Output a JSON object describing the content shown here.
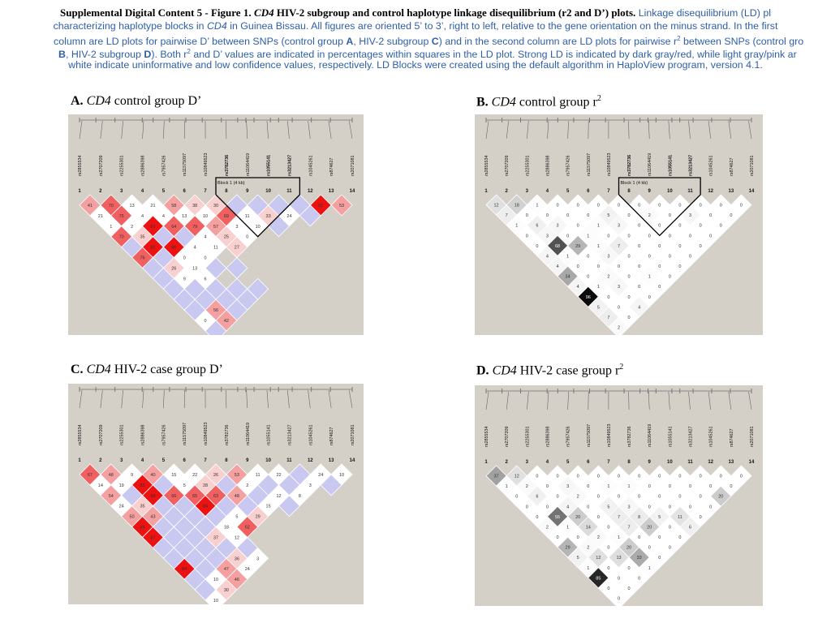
{
  "caption": {
    "heading_prefix": "Supplemental Digital Content 5 - Figure 1.",
    "heading_gene": "CD4",
    "heading_rest": " HIV-2 subgroup and control haplotype linkage disequilibrium (r2 and D’) plots.",
    "line1_tail": "Linkage disequilibrium (LD) pl",
    "line2_a": "characterizing haplotype blocks in ",
    "line2_gene": "CD4",
    "line2_b": " in Guinea Bissau. All figures are oriented 5’ to 3’, right to left, relative to the gene orientation on the minus strand. In the first",
    "line3_a": "column are LD plots for pairwise D’ between SNPs (control group ",
    "line3_A": "A",
    "line3_b": ", HIV-2 subgroup ",
    "line3_C": "C",
    "line3_c": ") and in the second column are LD plots for pairwise r",
    "line3_sup": "2",
    "line3_d": " between SNPs (control gro",
    "line4_B": "B",
    "line4_a": ", HIV-2 subgroup ",
    "line4_D": "D",
    "line4_b": "). Both r",
    "line4_sup": "2",
    "line4_c": " and D’ values are indicated in percentages within squares in the LD plot. Strong LD is indicated by dark gray/red, while light gray/pink ar",
    "line5": "white indicate uninformative and low confidence values, respectively. LD Blocks were created using the default algorithm in HaploView program, version 4.1."
  },
  "snps": [
    "rs2855534",
    "rs2707209",
    "rs2255301",
    "rs2886398",
    "rs7957426",
    "rs11575097",
    "rs10849523",
    "rs3782736",
    "rs11064419",
    "rs1055141",
    "rs3213427",
    "rs1045261",
    "rs874627",
    "rs2071081"
  ],
  "snp_numbers": [
    "1",
    "2",
    "3",
    "4",
    "5",
    "6",
    "7",
    "8",
    "9",
    "10",
    "11",
    "12",
    "13",
    "14"
  ],
  "panels": [
    {
      "id": "A",
      "letter": "A.",
      "gene": "CD4",
      "label": " control group D’",
      "sup": "",
      "scheme": "dprime",
      "block_label": "Block 1 (4 kb)",
      "highlight_snps": [
        8,
        10,
        11
      ],
      "cells": [
        [
          "41",
          "70",
          "13",
          "21",
          "58",
          "38",
          "30",
          "",
          "",
          "",
          "",
          "82",
          "53",
          ""
        ],
        [
          "21",
          "75",
          "4",
          "4",
          "13",
          "10",
          "69",
          "11",
          "33",
          "24",
          ""
        ],
        [
          "1",
          "2",
          "91",
          "64",
          "79",
          "57",
          "3",
          "10",
          ""
        ],
        [
          "70",
          "35",
          "",
          "",
          "4",
          "25",
          "0"
        ],
        [
          "",
          "82",
          "86",
          "4",
          "11",
          "27"
        ],
        [
          "76",
          "",
          "0",
          "0"
        ],
        [
          "",
          "26",
          "13",
          "",
          ""
        ],
        [
          "",
          "9",
          "6"
        ],
        [
          "",
          "",
          "",
          "",
          ""
        ],
        [
          "",
          "",
          "",
          ""
        ],
        [
          "",
          "56",
          ""
        ],
        [
          "0",
          "42"
        ],
        [
          "",
          ""
        ]
      ]
    },
    {
      "id": "B",
      "letter": "B.",
      "gene": "CD4",
      "label": " control group r",
      "sup": "2",
      "scheme": "r2",
      "block_label": "Block 1 (4 kb)",
      "highlight_snps": [
        8,
        10,
        11
      ],
      "cells": [
        [
          "12",
          "18",
          "1",
          "0",
          "0",
          "0",
          "0",
          "0",
          "0",
          "0",
          "0",
          "0",
          "0",
          "0"
        ],
        [
          "7",
          "0",
          "0",
          "0",
          "0",
          "5",
          "0",
          "2",
          "0",
          "3",
          "0",
          "0"
        ],
        [
          "1",
          "6",
          "3",
          "0",
          "1",
          "3",
          "0",
          "0",
          "0",
          "0",
          "0"
        ],
        [
          "0",
          "3",
          "0",
          "1",
          "0",
          "0",
          "0",
          "0",
          "0",
          "0"
        ],
        [
          "0",
          "68",
          "29",
          "1",
          "7",
          "0",
          "0",
          "0",
          "0"
        ],
        [
          "4",
          "1",
          "0",
          "3",
          "0",
          "0",
          "0",
          "0"
        ],
        [
          "4",
          "0",
          "0",
          "0",
          "0",
          "0",
          "0"
        ],
        [
          "34",
          "0",
          "2",
          "0",
          "1",
          "0"
        ],
        [
          "4",
          "1",
          "3",
          "0",
          "0"
        ],
        [
          "96",
          "0",
          "0",
          "0"
        ],
        [
          "5",
          "0",
          "4"
        ],
        [
          "7",
          "0"
        ],
        [
          "2"
        ]
      ]
    },
    {
      "id": "C",
      "letter": "C.",
      "gene": "CD4",
      "label": " HIV-2 case group D’",
      "sup": "",
      "scheme": "dprime",
      "block_label": "",
      "highlight_snps": [],
      "cells": [
        [
          "67",
          "48",
          "9",
          "40",
          "15",
          "22",
          "26",
          "53",
          "11",
          "22",
          "",
          "24",
          "10",
          ""
        ],
        [
          "14",
          "19",
          "85",
          "",
          "5",
          "28",
          "",
          "2",
          "",
          "",
          "3",
          ""
        ],
        [
          "54",
          "",
          "88",
          "66",
          "65",
          "63",
          "48",
          "",
          "12",
          "8"
        ],
        [
          "24",
          "35",
          "",
          "",
          "84",
          "",
          "",
          "15",
          ""
        ],
        [
          "50",
          "43",
          "",
          "",
          "",
          "5",
          "29"
        ],
        [
          "84",
          "",
          "",
          "",
          "18",
          "62"
        ],
        [
          "87",
          "",
          "",
          "37",
          "12"
        ],
        [
          "",
          "",
          "",
          "",
          ""
        ],
        [
          "",
          "",
          "",
          "36",
          "3"
        ],
        [
          "84",
          "",
          "47",
          "24"
        ],
        [
          "",
          "10",
          "46"
        ],
        [
          "",
          "30"
        ],
        [
          "10"
        ]
      ]
    },
    {
      "id": "D",
      "letter": "D.",
      "gene": "CD4",
      "label": " HIV-2 case group r",
      "sup": "2",
      "scheme": "r2",
      "block_label": "",
      "highlight_snps": [],
      "cells": [
        [
          "37",
          "12",
          "0",
          "0",
          "0",
          "0",
          "0",
          "0",
          "0",
          "0",
          "0",
          "0",
          "0",
          "0"
        ],
        [
          "1",
          "2",
          "0",
          "3",
          "0",
          "1",
          "1",
          "0",
          "0",
          "0",
          "0",
          "0"
        ],
        [
          "0",
          "6",
          "0",
          "2",
          "0",
          "0",
          "0",
          "0",
          "0",
          "0",
          "20"
        ],
        [
          "0",
          "0",
          "4",
          "0",
          "5",
          "3",
          "0",
          "0",
          "0",
          "0"
        ],
        [
          "0",
          "55",
          "20",
          "0",
          "7",
          "8",
          "5",
          "11",
          "0"
        ],
        [
          "2",
          "1",
          "14",
          "0",
          "7",
          "20",
          "0",
          "6",
          "1"
        ],
        [
          "0",
          "0",
          "2",
          "1",
          "0",
          "0",
          "0",
          "0"
        ],
        [
          "29",
          "2",
          "0",
          "20",
          "0",
          "0",
          "0"
        ],
        [
          "5",
          "12",
          "13",
          "33",
          "0",
          "0"
        ],
        [
          "1",
          "0",
          "0",
          "1",
          "0"
        ],
        [
          "85",
          "0",
          "0",
          "0"
        ],
        [
          "0",
          "0",
          "6"
        ],
        [
          "0",
          "4"
        ],
        [
          "0"
        ]
      ]
    }
  ]
}
